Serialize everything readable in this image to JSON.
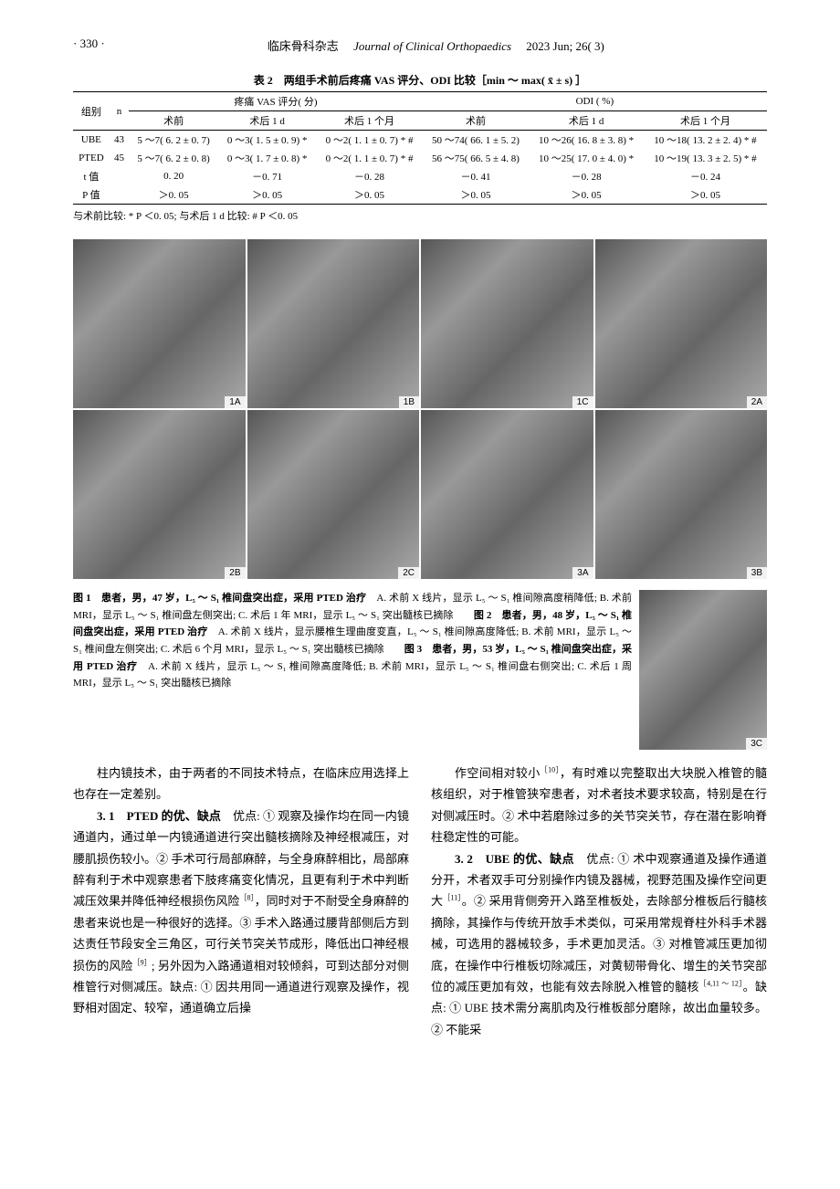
{
  "header": {
    "page_marker": "· 330 ·",
    "journal_cn": "临床骨科杂志",
    "journal_en": "Journal of Clinical Orthopaedics",
    "issue": "2023 Jun; 26( 3)"
  },
  "table": {
    "title": "表 2　两组手术前后疼痛 VAS 评分、ODI 比较［min ～ max( x̄ ± s) ］",
    "head_group_label": "组别",
    "head_n_label": "n",
    "vas_group": "疼痛 VAS 评分( 分)",
    "odi_group": "ODI ( %)",
    "sub_heads": [
      "术前",
      "术后 1 d",
      "术后 1 个月",
      "术前",
      "术后 1 d",
      "术后 1 个月"
    ],
    "rows": [
      {
        "g": "UBE",
        "n": "43",
        "c": [
          "5 ～7( 6. 2 ± 0. 7)",
          "0 ～3( 1. 5 ± 0. 9) *",
          "0 ～2( 1. 1 ± 0. 7) * #",
          "50 ～74( 66. 1 ± 5. 2)",
          "10 ～26( 16. 8 ± 3. 8) *",
          "10 ～18( 13. 2 ± 2. 4) * #"
        ]
      },
      {
        "g": "PTED",
        "n": "45",
        "c": [
          "5 ～7( 6. 2 ± 0. 8)",
          "0 ～3( 1. 7 ± 0. 8) *",
          "0 ～2( 1. 1 ± 0. 7) * #",
          "56 ～75( 66. 5 ± 4. 8)",
          "10 ～25( 17. 0 ± 4. 0) *",
          "10 ～19( 13. 3 ± 2. 5) * #"
        ]
      },
      {
        "g": "t 值",
        "n": "",
        "c": [
          "0. 20",
          "－0. 71",
          "－0. 28",
          "－0. 41",
          "－0. 28",
          "－0. 24"
        ]
      },
      {
        "g": "P 值",
        "n": "",
        "c": [
          "＞0. 05",
          "＞0. 05",
          "＞0. 05",
          "＞0. 05",
          "＞0. 05",
          "＞0. 05"
        ]
      }
    ],
    "note": "与术前比较: * P ＜0. 05; 与术后 1 d 比较: # P ＜0. 05"
  },
  "figures": {
    "row1": [
      {
        "label": "1A",
        "w": 1
      },
      {
        "label": "1B",
        "w": 1
      },
      {
        "label": "1C",
        "w": 1
      },
      {
        "label": "2A",
        "w": 1
      }
    ],
    "row2": [
      {
        "label": "2B",
        "w": 1
      },
      {
        "label": "2C",
        "w": 1
      },
      {
        "label": "3A",
        "w": 1
      },
      {
        "label": "3B",
        "w": 1
      }
    ],
    "side": {
      "label": "3C"
    }
  },
  "captions": {
    "text": "图 1　患者，男，47 岁，L₅ ～ S₁ 椎间盘突出症，采用 PTED 治疗　A. 术前 X 线片，显示 L₅ ～ S₁ 椎间隙高度稍降低; B. 术前 MRI，显示 L₅ ～ S₁ 椎间盘左侧突出; C. 术后 1 年 MRI，显示 L₅ ～ S₁ 突出髓核已摘除　　图 2　患者，男，48 岁，L₅ ～ S₁ 椎间盘突出症，采用 PTED 治疗　A. 术前 X 线片，显示腰椎生理曲度变直，L₅ ～ S₁ 椎间隙高度降低; B. 术前 MRI，显示 L₅ ～ S₁ 椎间盘左侧突出; C. 术后 6 个月 MRI，显示 L₅ ～ S₁ 突出髓核已摘除　　图 3　患者，男，53 岁，L₅ ～ S₁ 椎间盘突出症，采用 PTED 治疗　A. 术前 X 线片，显示 L₅ ～ S₁ 椎间隙高度降低; B. 术前 MRI，显示 L₅ ～ S₁ 椎间盘右侧突出; C. 术后 1 周 MRI，显示 L₅ ～ S₁ 突出髓核已摘除"
  },
  "body": {
    "left": [
      "柱内镜技术，由于两者的不同技术特点，在临床应用选择上也存在一定差别。",
      "3. 1　PTED 的优、缺点　优点: ① 观察及操作均在同一内镜通道内，通过单一内镜通道进行突出髓核摘除及神经根减压，对腰肌损伤较小。② 手术可行局部麻醉，与全身麻醉相比，局部麻醉有利于术中观察患者下肢疼痛变化情况，且更有利于术中判断减压效果并降低神经根损伤风险［8］，同时对于不耐受全身麻醉的患者来说也是一种很好的选择。③ 手术入路通过腰背部侧后方到达责任节段安全三角区，可行关节突关节成形，降低出口神经根损伤的风险［9］; 另外因为入路通道相对较倾斜，可到达部分对侧椎管行对侧减压。缺点: ① 因共用同一通道进行观察及操作，视野相对固定、较窄，通道确立后操"
    ],
    "right": [
      "作空间相对较小［10］，有时难以完整取出大块脱入椎管的髓核组织，对于椎管狭窄患者，对术者技术要求较高，特别是在行对侧减压时。② 术中若磨除过多的关节突关节，存在潜在影响脊柱稳定性的可能。",
      "3. 2　UBE 的优、缺点　优点: ① 术中观察通道及操作通道分开，术者双手可分别操作内镜及器械，视野范围及操作空间更大［11］。② 采用背侧旁开入路至椎板处，去除部分椎板后行髓核摘除，其操作与传统开放手术类似，可采用常规脊柱外科手术器械，可选用的器械较多，手术更加灵活。③ 对椎管减压更加彻底，在操作中行椎板切除减压，对黄韧带骨化、增生的关节突部位的减压更加有效，也能有效去除脱入椎管的髓核［4,11 ～ 12］。缺点: ① UBE 技术需分离肌肉及行椎板部分磨除，故出血量较多。② 不能采"
    ]
  }
}
